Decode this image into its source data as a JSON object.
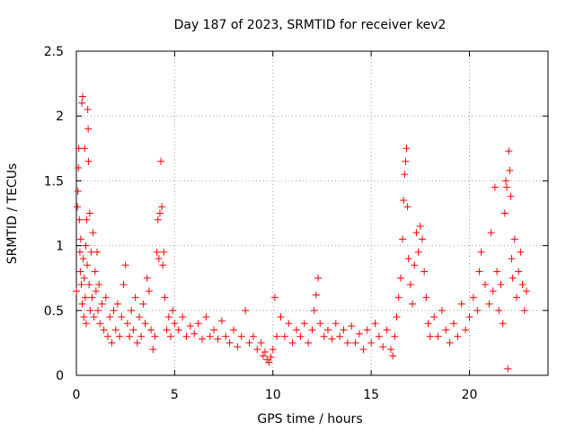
{
  "chart_data": {
    "type": "scatter",
    "title": "Day 187 of 2023, SRMTID for receiver kev2",
    "xlabel": "GPS time / hours",
    "ylabel": "SRMTID / TECUs",
    "xlim": [
      0,
      24
    ],
    "ylim": [
      0,
      2.5
    ],
    "x_ticks": [
      0,
      5,
      10,
      15,
      20
    ],
    "x_tick_labels": [
      "0",
      "5",
      "10",
      "15",
      "20"
    ],
    "y_ticks": [
      0,
      0.5,
      1,
      1.5,
      2,
      2.5
    ],
    "y_tick_labels": [
      "0",
      "0.5",
      "1",
      "1.5",
      "2",
      "2.5"
    ],
    "grid": true,
    "marker": "+",
    "color": "#ff0000",
    "series": [
      {
        "name": "SRMTID",
        "points": [
          [
            0.0,
            0.65
          ],
          [
            0.05,
            1.3
          ],
          [
            0.08,
            1.42
          ],
          [
            0.1,
            1.6
          ],
          [
            0.12,
            1.75
          ],
          [
            0.15,
            1.2
          ],
          [
            0.18,
            0.95
          ],
          [
            0.2,
            0.8
          ],
          [
            0.22,
            1.05
          ],
          [
            0.25,
            0.7
          ],
          [
            0.28,
            2.1
          ],
          [
            0.3,
            0.55
          ],
          [
            0.32,
            2.15
          ],
          [
            0.35,
            0.9
          ],
          [
            0.38,
            0.45
          ],
          [
            0.4,
            0.75
          ],
          [
            0.42,
            1.75
          ],
          [
            0.45,
            0.6
          ],
          [
            0.48,
            1.0
          ],
          [
            0.5,
            0.4
          ],
          [
            0.52,
            1.2
          ],
          [
            0.55,
            0.85
          ],
          [
            0.58,
            2.05
          ],
          [
            0.6,
            1.9
          ],
          [
            0.62,
            1.65
          ],
          [
            0.65,
            0.7
          ],
          [
            0.68,
            1.25
          ],
          [
            0.7,
            0.5
          ],
          [
            0.75,
            0.95
          ],
          [
            0.8,
            0.6
          ],
          [
            0.85,
            1.1
          ],
          [
            0.9,
            0.45
          ],
          [
            0.95,
            0.8
          ],
          [
            1.0,
            0.65
          ],
          [
            1.05,
            0.95
          ],
          [
            1.1,
            0.5
          ],
          [
            1.15,
            0.7
          ],
          [
            1.2,
            0.4
          ],
          [
            1.3,
            0.55
          ],
          [
            1.4,
            0.35
          ],
          [
            1.5,
            0.6
          ],
          [
            1.6,
            0.3
          ],
          [
            1.7,
            0.45
          ],
          [
            1.8,
            0.25
          ],
          [
            1.9,
            0.5
          ],
          [
            2.0,
            0.35
          ],
          [
            2.1,
            0.55
          ],
          [
            2.2,
            0.3
          ],
          [
            2.3,
            0.45
          ],
          [
            2.4,
            0.7
          ],
          [
            2.5,
            0.85
          ],
          [
            2.6,
            0.4
          ],
          [
            2.7,
            0.3
          ],
          [
            2.8,
            0.5
          ],
          [
            2.9,
            0.35
          ],
          [
            3.0,
            0.6
          ],
          [
            3.1,
            0.25
          ],
          [
            3.2,
            0.45
          ],
          [
            3.3,
            0.3
          ],
          [
            3.4,
            0.55
          ],
          [
            3.5,
            0.4
          ],
          [
            3.6,
            0.75
          ],
          [
            3.7,
            0.65
          ],
          [
            3.8,
            0.35
          ],
          [
            3.9,
            0.2
          ],
          [
            4.0,
            0.3
          ],
          [
            4.1,
            0.95
          ],
          [
            4.15,
            1.2
          ],
          [
            4.2,
            0.9
          ],
          [
            4.25,
            1.25
          ],
          [
            4.3,
            1.65
          ],
          [
            4.35,
            1.3
          ],
          [
            4.4,
            0.85
          ],
          [
            4.45,
            0.95
          ],
          [
            4.5,
            0.6
          ],
          [
            4.6,
            0.35
          ],
          [
            4.7,
            0.45
          ],
          [
            4.8,
            0.3
          ],
          [
            4.9,
            0.5
          ],
          [
            5.0,
            0.4
          ],
          [
            5.2,
            0.35
          ],
          [
            5.4,
            0.45
          ],
          [
            5.6,
            0.3
          ],
          [
            5.8,
            0.38
          ],
          [
            6.0,
            0.32
          ],
          [
            6.2,
            0.4
          ],
          [
            6.4,
            0.28
          ],
          [
            6.6,
            0.45
          ],
          [
            6.8,
            0.3
          ],
          [
            7.0,
            0.35
          ],
          [
            7.2,
            0.28
          ],
          [
            7.4,
            0.42
          ],
          [
            7.6,
            0.3
          ],
          [
            7.8,
            0.25
          ],
          [
            8.0,
            0.35
          ],
          [
            8.2,
            0.22
          ],
          [
            8.4,
            0.3
          ],
          [
            8.6,
            0.5
          ],
          [
            8.8,
            0.25
          ],
          [
            9.0,
            0.3
          ],
          [
            9.2,
            0.2
          ],
          [
            9.4,
            0.25
          ],
          [
            9.5,
            0.15
          ],
          [
            9.6,
            0.18
          ],
          [
            9.7,
            0.12
          ],
          [
            9.8,
            0.1
          ],
          [
            9.9,
            0.14
          ],
          [
            10.0,
            0.2
          ],
          [
            10.1,
            0.6
          ],
          [
            10.2,
            0.3
          ],
          [
            10.4,
            0.45
          ],
          [
            10.6,
            0.3
          ],
          [
            10.8,
            0.4
          ],
          [
            11.0,
            0.25
          ],
          [
            11.2,
            0.35
          ],
          [
            11.4,
            0.3
          ],
          [
            11.6,
            0.4
          ],
          [
            11.8,
            0.25
          ],
          [
            12.0,
            0.35
          ],
          [
            12.1,
            0.5
          ],
          [
            12.2,
            0.62
          ],
          [
            12.3,
            0.75
          ],
          [
            12.4,
            0.4
          ],
          [
            12.6,
            0.3
          ],
          [
            12.8,
            0.35
          ],
          [
            13.0,
            0.28
          ],
          [
            13.2,
            0.4
          ],
          [
            13.4,
            0.3
          ],
          [
            13.6,
            0.35
          ],
          [
            13.8,
            0.25
          ],
          [
            14.0,
            0.38
          ],
          [
            14.2,
            0.25
          ],
          [
            14.4,
            0.32
          ],
          [
            14.6,
            0.2
          ],
          [
            14.8,
            0.35
          ],
          [
            15.0,
            0.25
          ],
          [
            15.2,
            0.4
          ],
          [
            15.4,
            0.3
          ],
          [
            15.6,
            0.22
          ],
          [
            15.8,
            0.35
          ],
          [
            16.0,
            0.2
          ],
          [
            16.1,
            0.15
          ],
          [
            16.2,
            0.3
          ],
          [
            16.3,
            0.45
          ],
          [
            16.4,
            0.6
          ],
          [
            16.5,
            0.75
          ],
          [
            16.6,
            1.05
          ],
          [
            16.65,
            1.35
          ],
          [
            16.7,
            1.55
          ],
          [
            16.75,
            1.65
          ],
          [
            16.8,
            1.75
          ],
          [
            16.85,
            1.3
          ],
          [
            16.9,
            0.9
          ],
          [
            17.0,
            0.7
          ],
          [
            17.1,
            0.55
          ],
          [
            17.2,
            0.85
          ],
          [
            17.3,
            1.1
          ],
          [
            17.4,
            0.95
          ],
          [
            17.5,
            1.15
          ],
          [
            17.6,
            1.05
          ],
          [
            17.7,
            0.8
          ],
          [
            17.8,
            0.6
          ],
          [
            17.9,
            0.4
          ],
          [
            18.0,
            0.3
          ],
          [
            18.2,
            0.45
          ],
          [
            18.4,
            0.3
          ],
          [
            18.6,
            0.5
          ],
          [
            18.8,
            0.35
          ],
          [
            19.0,
            0.25
          ],
          [
            19.2,
            0.4
          ],
          [
            19.4,
            0.3
          ],
          [
            19.6,
            0.55
          ],
          [
            19.8,
            0.35
          ],
          [
            20.0,
            0.45
          ],
          [
            20.2,
            0.6
          ],
          [
            20.4,
            0.5
          ],
          [
            20.5,
            0.8
          ],
          [
            20.6,
            0.95
          ],
          [
            20.8,
            0.7
          ],
          [
            21.0,
            0.55
          ],
          [
            21.1,
            1.1
          ],
          [
            21.2,
            0.65
          ],
          [
            21.3,
            1.45
          ],
          [
            21.4,
            0.8
          ],
          [
            21.5,
            0.5
          ],
          [
            21.6,
            0.7
          ],
          [
            21.7,
            0.4
          ],
          [
            21.8,
            1.25
          ],
          [
            21.85,
            1.5
          ],
          [
            21.9,
            1.45
          ],
          [
            21.95,
            0.05
          ],
          [
            22.0,
            1.73
          ],
          [
            22.05,
            1.58
          ],
          [
            22.1,
            1.38
          ],
          [
            22.15,
            0.9
          ],
          [
            22.2,
            0.75
          ],
          [
            22.3,
            1.05
          ],
          [
            22.4,
            0.6
          ],
          [
            22.5,
            0.8
          ],
          [
            22.6,
            0.95
          ],
          [
            22.7,
            0.7
          ],
          [
            22.8,
            0.5
          ],
          [
            22.9,
            0.65
          ]
        ]
      }
    ]
  }
}
